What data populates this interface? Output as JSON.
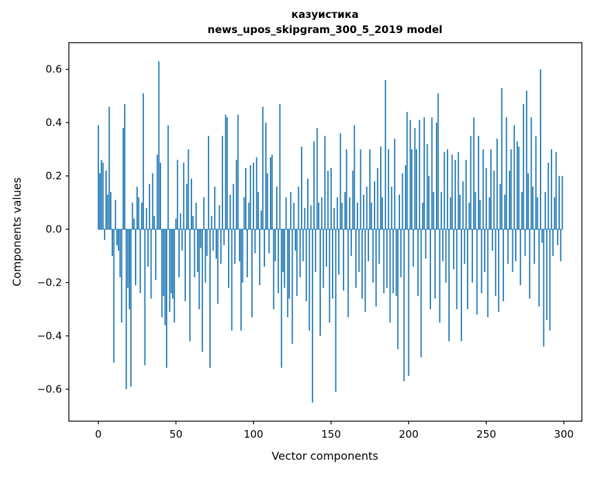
{
  "chart_data": {
    "type": "bar",
    "title": "казуистика",
    "subtitle": "news_upos_skipgram_300_5_2019 model",
    "xlabel": "Vector components",
    "ylabel": "Components values",
    "bar_color": "#1f77b4",
    "background_color": "#ffffff",
    "spine_color": "#000000",
    "grid": false,
    "legend": "none",
    "n_components": 300,
    "bar_width": 0.8,
    "xlim": [
      -19.0,
      311.6
    ],
    "ylim": [
      -0.72,
      0.7
    ],
    "xticks": {
      "values": [
        0,
        50,
        100,
        150,
        200,
        250,
        300
      ],
      "labels": [
        "0",
        "50",
        "100",
        "150",
        "200",
        "250",
        "300"
      ]
    },
    "yticks": {
      "values": [
        0.6,
        0.4,
        0.2,
        0.0,
        -0.2,
        -0.4,
        -0.6
      ],
      "labels": [
        "0.6",
        "0.4",
        "0.2",
        "0.0",
        "−0.2",
        "−0.4",
        "−0.6"
      ]
    },
    "values": [
      0.39,
      0.21,
      0.26,
      0.25,
      -0.04,
      0.22,
      0.13,
      0.46,
      0.14,
      -0.1,
      -0.5,
      0.11,
      -0.06,
      -0.08,
      -0.18,
      -0.35,
      0.38,
      0.47,
      -0.6,
      -0.22,
      -0.3,
      -0.59,
      0.1,
      0.04,
      -0.21,
      0.16,
      0.12,
      -0.24,
      0.1,
      0.51,
      -0.51,
      0.08,
      -0.14,
      0.17,
      -0.26,
      0.21,
      0.05,
      -0.19,
      0.28,
      0.63,
      0.25,
      -0.33,
      -0.25,
      -0.36,
      -0.52,
      0.39,
      -0.31,
      -0.24,
      -0.26,
      -0.35,
      0.04,
      0.26,
      -0.18,
      0.06,
      -0.08,
      0.25,
      -0.27,
      0.17,
      0.3,
      -0.42,
      0.19,
      0.05,
      -0.18,
      0.1,
      -0.16,
      -0.3,
      -0.07,
      -0.46,
      0.12,
      -0.2,
      -0.1,
      0.35,
      -0.52,
      0.05,
      -0.08,
      0.16,
      -0.11,
      -0.28,
      0.09,
      -0.13,
      0.35,
      -0.06,
      0.43,
      0.42,
      -0.22,
      0.13,
      -0.38,
      0.17,
      -0.13,
      0.26,
      0.43,
      -0.12,
      -0.38,
      -0.2,
      0.12,
      0.23,
      -0.18,
      0.1,
      0.24,
      -0.33,
      0.25,
      -0.09,
      0.27,
      0.14,
      -0.21,
      0.07,
      0.46,
      -0.14,
      0.4,
      0.21,
      -0.09,
      0.27,
      0.28,
      -0.3,
      -0.12,
      0.16,
      -0.24,
      0.47,
      -0.52,
      -0.16,
      -0.22,
      0.12,
      -0.33,
      -0.26,
      0.14,
      -0.43,
      0.1,
      -0.08,
      -0.25,
      0.16,
      -0.18,
      0.31,
      -0.12,
      0.08,
      -0.27,
      0.19,
      -0.38,
      0.09,
      -0.65,
      0.33,
      -0.16,
      0.38,
      0.1,
      -0.4,
      0.12,
      -0.22,
      0.35,
      -0.14,
      0.22,
      -0.35,
      0.23,
      -0.26,
      0.08,
      -0.61,
      0.12,
      -0.17,
      0.36,
      0.1,
      -0.23,
      0.14,
      0.3,
      -0.33,
      0.12,
      -0.1,
      0.22,
      0.39,
      -0.22,
      0.1,
      -0.16,
      0.3,
      -0.26,
      0.13,
      -0.31,
      0.16,
      -0.12,
      0.3,
      0.1,
      -0.2,
      0.18,
      -0.29,
      0.23,
      -0.13,
      0.31,
      0.12,
      -0.24,
      0.56,
      -0.22,
      0.3,
      -0.35,
      0.16,
      -0.24,
      0.34,
      -0.25,
      -0.45,
      0.13,
      -0.18,
      0.21,
      -0.57,
      0.24,
      0.44,
      -0.55,
      0.41,
      0.3,
      -0.14,
      0.38,
      0.3,
      -0.25,
      0.41,
      -0.48,
      0.1,
      0.42,
      -0.11,
      0.32,
      0.2,
      -0.3,
      0.42,
      0.14,
      -0.26,
      0.4,
      0.51,
      -0.35,
      0.14,
      -0.12,
      0.29,
      -0.2,
      0.3,
      -0.42,
      0.12,
      0.28,
      -0.15,
      0.26,
      -0.3,
      0.29,
      0.13,
      -0.42,
      0.18,
      -0.13,
      0.26,
      -0.3,
      0.1,
      0.35,
      -0.2,
      0.42,
      0.14,
      -0.32,
      0.35,
      0.11,
      -0.24,
      0.3,
      -0.16,
      0.23,
      -0.33,
      0.12,
      0.3,
      -0.08,
      0.22,
      -0.25,
      0.34,
      -0.31,
      0.17,
      0.53,
      -0.27,
      0.13,
      0.42,
      -0.13,
      0.22,
      0.3,
      -0.16,
      0.39,
      -0.12,
      0.33,
      0.31,
      -0.21,
      0.14,
      0.47,
      -0.1,
      0.52,
      0.21,
      -0.26,
      0.42,
      0.16,
      -0.13,
      0.35,
      0.12,
      -0.29,
      0.6,
      -0.05,
      -0.44,
      0.14,
      -0.34,
      0.25,
      -0.38,
      0.3,
      -0.1,
      0.12,
      0.29,
      -0.06,
      0.2,
      -0.12,
      0.2
    ]
  }
}
